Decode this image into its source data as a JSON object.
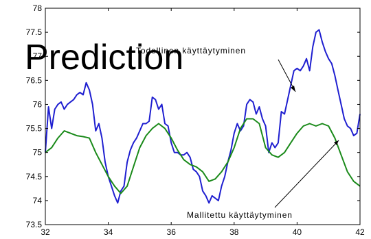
{
  "watermark_text": "Prediction",
  "chart_data": {
    "type": "line",
    "title": "",
    "xlabel": "",
    "ylabel": "",
    "xlim": [
      32,
      42
    ],
    "ylim": [
      73.5,
      78
    ],
    "x_ticks": [
      32,
      34,
      36,
      38,
      40,
      42
    ],
    "y_ticks": [
      73.5,
      74,
      74.5,
      75,
      75.5,
      76,
      76.5,
      77,
      77.5,
      78
    ],
    "grid": false,
    "colors": {
      "actual": "#1f1fd0",
      "model": "#1a8a1a"
    },
    "series": [
      {
        "name": "actual",
        "color": "#1f1fd0",
        "x": [
          32.0,
          32.1,
          32.2,
          32.3,
          32.4,
          32.5,
          32.6,
          32.7,
          32.8,
          32.9,
          33.0,
          33.1,
          33.2,
          33.3,
          33.4,
          33.5,
          33.6,
          33.7,
          33.8,
          33.9,
          34.0,
          34.1,
          34.2,
          34.3,
          34.4,
          34.5,
          34.6,
          34.7,
          34.8,
          34.9,
          35.0,
          35.1,
          35.2,
          35.3,
          35.4,
          35.5,
          35.6,
          35.7,
          35.8,
          35.9,
          36.0,
          36.1,
          36.2,
          36.3,
          36.4,
          36.5,
          36.6,
          36.7,
          36.8,
          36.9,
          37.0,
          37.1,
          37.2,
          37.3,
          37.4,
          37.5,
          37.6,
          37.7,
          37.8,
          37.9,
          38.0,
          38.1,
          38.2,
          38.3,
          38.4,
          38.5,
          38.6,
          38.7,
          38.8,
          38.9,
          39.0,
          39.1,
          39.2,
          39.3,
          39.4,
          39.5,
          39.6,
          39.7,
          39.8,
          39.9,
          40.0,
          40.1,
          40.2,
          40.3,
          40.4,
          40.5,
          40.6,
          40.7,
          40.8,
          40.9,
          41.0,
          41.1,
          41.2,
          41.3,
          41.4,
          41.5,
          41.6,
          41.7,
          41.8,
          41.9,
          42.0
        ],
        "y": [
          75.0,
          75.95,
          75.5,
          75.9,
          76.0,
          76.05,
          75.9,
          76.0,
          76.05,
          76.1,
          76.2,
          76.25,
          76.2,
          76.45,
          76.3,
          76.0,
          75.45,
          75.6,
          75.3,
          74.8,
          74.5,
          74.3,
          74.1,
          73.95,
          74.2,
          74.3,
          74.8,
          75.05,
          75.2,
          75.3,
          75.45,
          75.6,
          75.6,
          75.65,
          76.15,
          76.1,
          75.9,
          76.0,
          75.6,
          75.55,
          75.2,
          75.0,
          75.0,
          74.95,
          74.95,
          75.0,
          74.9,
          74.65,
          74.6,
          74.5,
          74.2,
          74.1,
          73.95,
          74.1,
          74.05,
          74.0,
          74.3,
          74.5,
          74.8,
          75.05,
          75.4,
          75.6,
          75.45,
          75.55,
          76.0,
          76.1,
          76.05,
          75.8,
          75.95,
          75.7,
          75.55,
          75.0,
          75.2,
          75.1,
          75.2,
          75.85,
          75.8,
          76.1,
          76.4,
          76.7,
          76.75,
          76.7,
          76.8,
          76.95,
          76.7,
          77.2,
          77.5,
          77.55,
          77.3,
          77.1,
          76.95,
          76.85,
          76.6,
          76.3,
          76.0,
          75.7,
          75.55,
          75.5,
          75.35,
          75.4,
          75.8
        ]
      },
      {
        "name": "model",
        "color": "#1a8a1a",
        "x": [
          32.0,
          32.2,
          32.4,
          32.6,
          32.8,
          33.0,
          33.2,
          33.4,
          33.6,
          33.8,
          34.0,
          34.2,
          34.4,
          34.6,
          34.8,
          35.0,
          35.2,
          35.4,
          35.6,
          35.8,
          36.0,
          36.2,
          36.4,
          36.6,
          36.8,
          37.0,
          37.2,
          37.4,
          37.6,
          37.8,
          38.0,
          38.2,
          38.4,
          38.6,
          38.8,
          39.0,
          39.2,
          39.4,
          39.6,
          39.8,
          40.0,
          40.2,
          40.4,
          40.6,
          40.8,
          41.0,
          41.2,
          41.4,
          41.6,
          41.8,
          42.0
        ],
        "y": [
          75.0,
          75.1,
          75.3,
          75.45,
          75.4,
          75.35,
          75.33,
          75.3,
          75.0,
          74.75,
          74.5,
          74.3,
          74.15,
          74.3,
          74.7,
          75.1,
          75.35,
          75.5,
          75.6,
          75.5,
          75.3,
          75.05,
          74.85,
          74.75,
          74.7,
          74.6,
          74.4,
          74.45,
          74.6,
          74.8,
          75.1,
          75.5,
          75.7,
          75.7,
          75.6,
          75.1,
          74.95,
          74.9,
          75.0,
          75.2,
          75.4,
          75.55,
          75.6,
          75.55,
          75.6,
          75.55,
          75.3,
          74.95,
          74.6,
          74.4,
          74.3
        ]
      }
    ],
    "annotations": [
      {
        "text": "Todellinen käyttäytyminen",
        "x": 39.2,
        "y": 77.2,
        "arrow_to": [
          40.7,
          76.6
        ]
      },
      {
        "text": "Mallitettu käyttäytyminen",
        "x": 38.5,
        "y": 73.85,
        "arrow_to": [
          41.1,
          75.2
        ]
      }
    ]
  }
}
